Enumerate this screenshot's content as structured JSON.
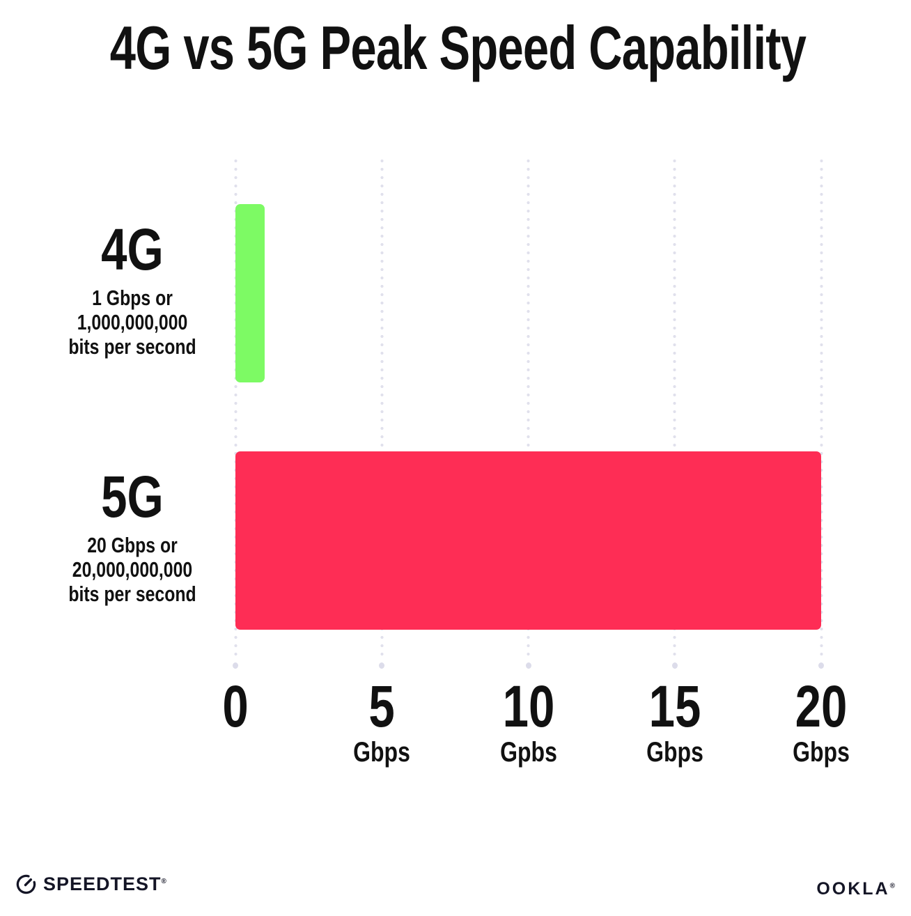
{
  "title": "4G vs 5G Peak Speed Capability",
  "chart_data": {
    "type": "bar",
    "orientation": "horizontal",
    "title": "4G vs 5G Peak Speed Capability",
    "xlabel": "",
    "ylabel": "",
    "xlim": [
      0,
      20
    ],
    "grid": "vertical-dotted",
    "legend": "none",
    "categories": [
      "4G",
      "5G"
    ],
    "values": [
      1,
      20
    ],
    "value_unit": "Gbps",
    "rows": [
      {
        "label": "4G",
        "value_gbps": 1,
        "color": "#7DFA64",
        "desc_line1": "1 Gbps or",
        "desc_line2": "1,000,000,000",
        "desc_line3": "bits per second"
      },
      {
        "label": "5G",
        "value_gbps": 20,
        "color": "#FE2D55",
        "desc_line1": "20 Gbps or",
        "desc_line2": "20,000,000,000",
        "desc_line3": "bits per second"
      }
    ],
    "x_ticks": [
      {
        "label": "0",
        "unit": ""
      },
      {
        "label": "5",
        "unit": "Gbps"
      },
      {
        "label": "10",
        "unit": "Gpbs"
      },
      {
        "label": "15",
        "unit": "Gbps"
      },
      {
        "label": "20",
        "unit": "Gbps"
      }
    ]
  },
  "footer": {
    "speedtest_text": "SPEEDTEST",
    "speedtest_mark": "®",
    "ookla_text": "OOKLA",
    "ookla_mark": "®"
  },
  "colors": {
    "bar_4g": "#7DFA64",
    "bar_5g": "#FE2D55",
    "gridline": "#E0E0EC",
    "gridline_end_dot": "#DCDCEA",
    "text": "#111111",
    "background": "#FFFFFF"
  }
}
